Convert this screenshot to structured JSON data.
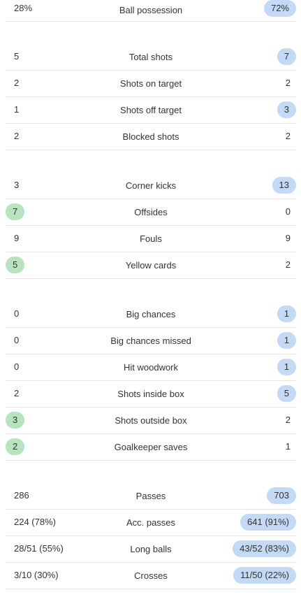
{
  "groups": [
    {
      "rows": [
        {
          "label": "Ball possession",
          "home": "28%",
          "away": "72%",
          "winner": "away"
        }
      ]
    },
    {
      "rows": [
        {
          "label": "Total shots",
          "home": "5",
          "away": "7",
          "winner": "away"
        },
        {
          "label": "Shots on target",
          "home": "2",
          "away": "2",
          "winner": "none"
        },
        {
          "label": "Shots off target",
          "home": "1",
          "away": "3",
          "winner": "away"
        },
        {
          "label": "Blocked shots",
          "home": "2",
          "away": "2",
          "winner": "none"
        }
      ]
    },
    {
      "rows": [
        {
          "label": "Corner kicks",
          "home": "3",
          "away": "13",
          "winner": "away"
        },
        {
          "label": "Offsides",
          "home": "7",
          "away": "0",
          "winner": "home"
        },
        {
          "label": "Fouls",
          "home": "9",
          "away": "9",
          "winner": "none"
        },
        {
          "label": "Yellow cards",
          "home": "5",
          "away": "2",
          "winner": "home"
        }
      ]
    },
    {
      "rows": [
        {
          "label": "Big chances",
          "home": "0",
          "away": "1",
          "winner": "away"
        },
        {
          "label": "Big chances missed",
          "home": "0",
          "away": "1",
          "winner": "away"
        },
        {
          "label": "Hit woodwork",
          "home": "0",
          "away": "1",
          "winner": "away"
        },
        {
          "label": "Shots inside box",
          "home": "2",
          "away": "5",
          "winner": "away"
        },
        {
          "label": "Shots outside box",
          "home": "3",
          "away": "2",
          "winner": "home"
        },
        {
          "label": "Goalkeeper saves",
          "home": "2",
          "away": "1",
          "winner": "home"
        }
      ]
    },
    {
      "rows": [
        {
          "label": "Passes",
          "home": "286",
          "away": "703",
          "winner": "away"
        },
        {
          "label": "Acc. passes",
          "home": "224 (78%)",
          "away": "641 (91%)",
          "winner": "away"
        },
        {
          "label": "Long balls",
          "home": "28/51 (55%)",
          "away": "43/52 (83%)",
          "winner": "away"
        },
        {
          "label": "Crosses",
          "home": "3/10 (30%)",
          "away": "11/50 (22%)",
          "winner": "away"
        }
      ]
    }
  ],
  "colors": {
    "home_highlight": "#b8e3bf",
    "away_highlight": "#c3d9f5",
    "divider": "#e6e6e6",
    "text": "#333333"
  }
}
